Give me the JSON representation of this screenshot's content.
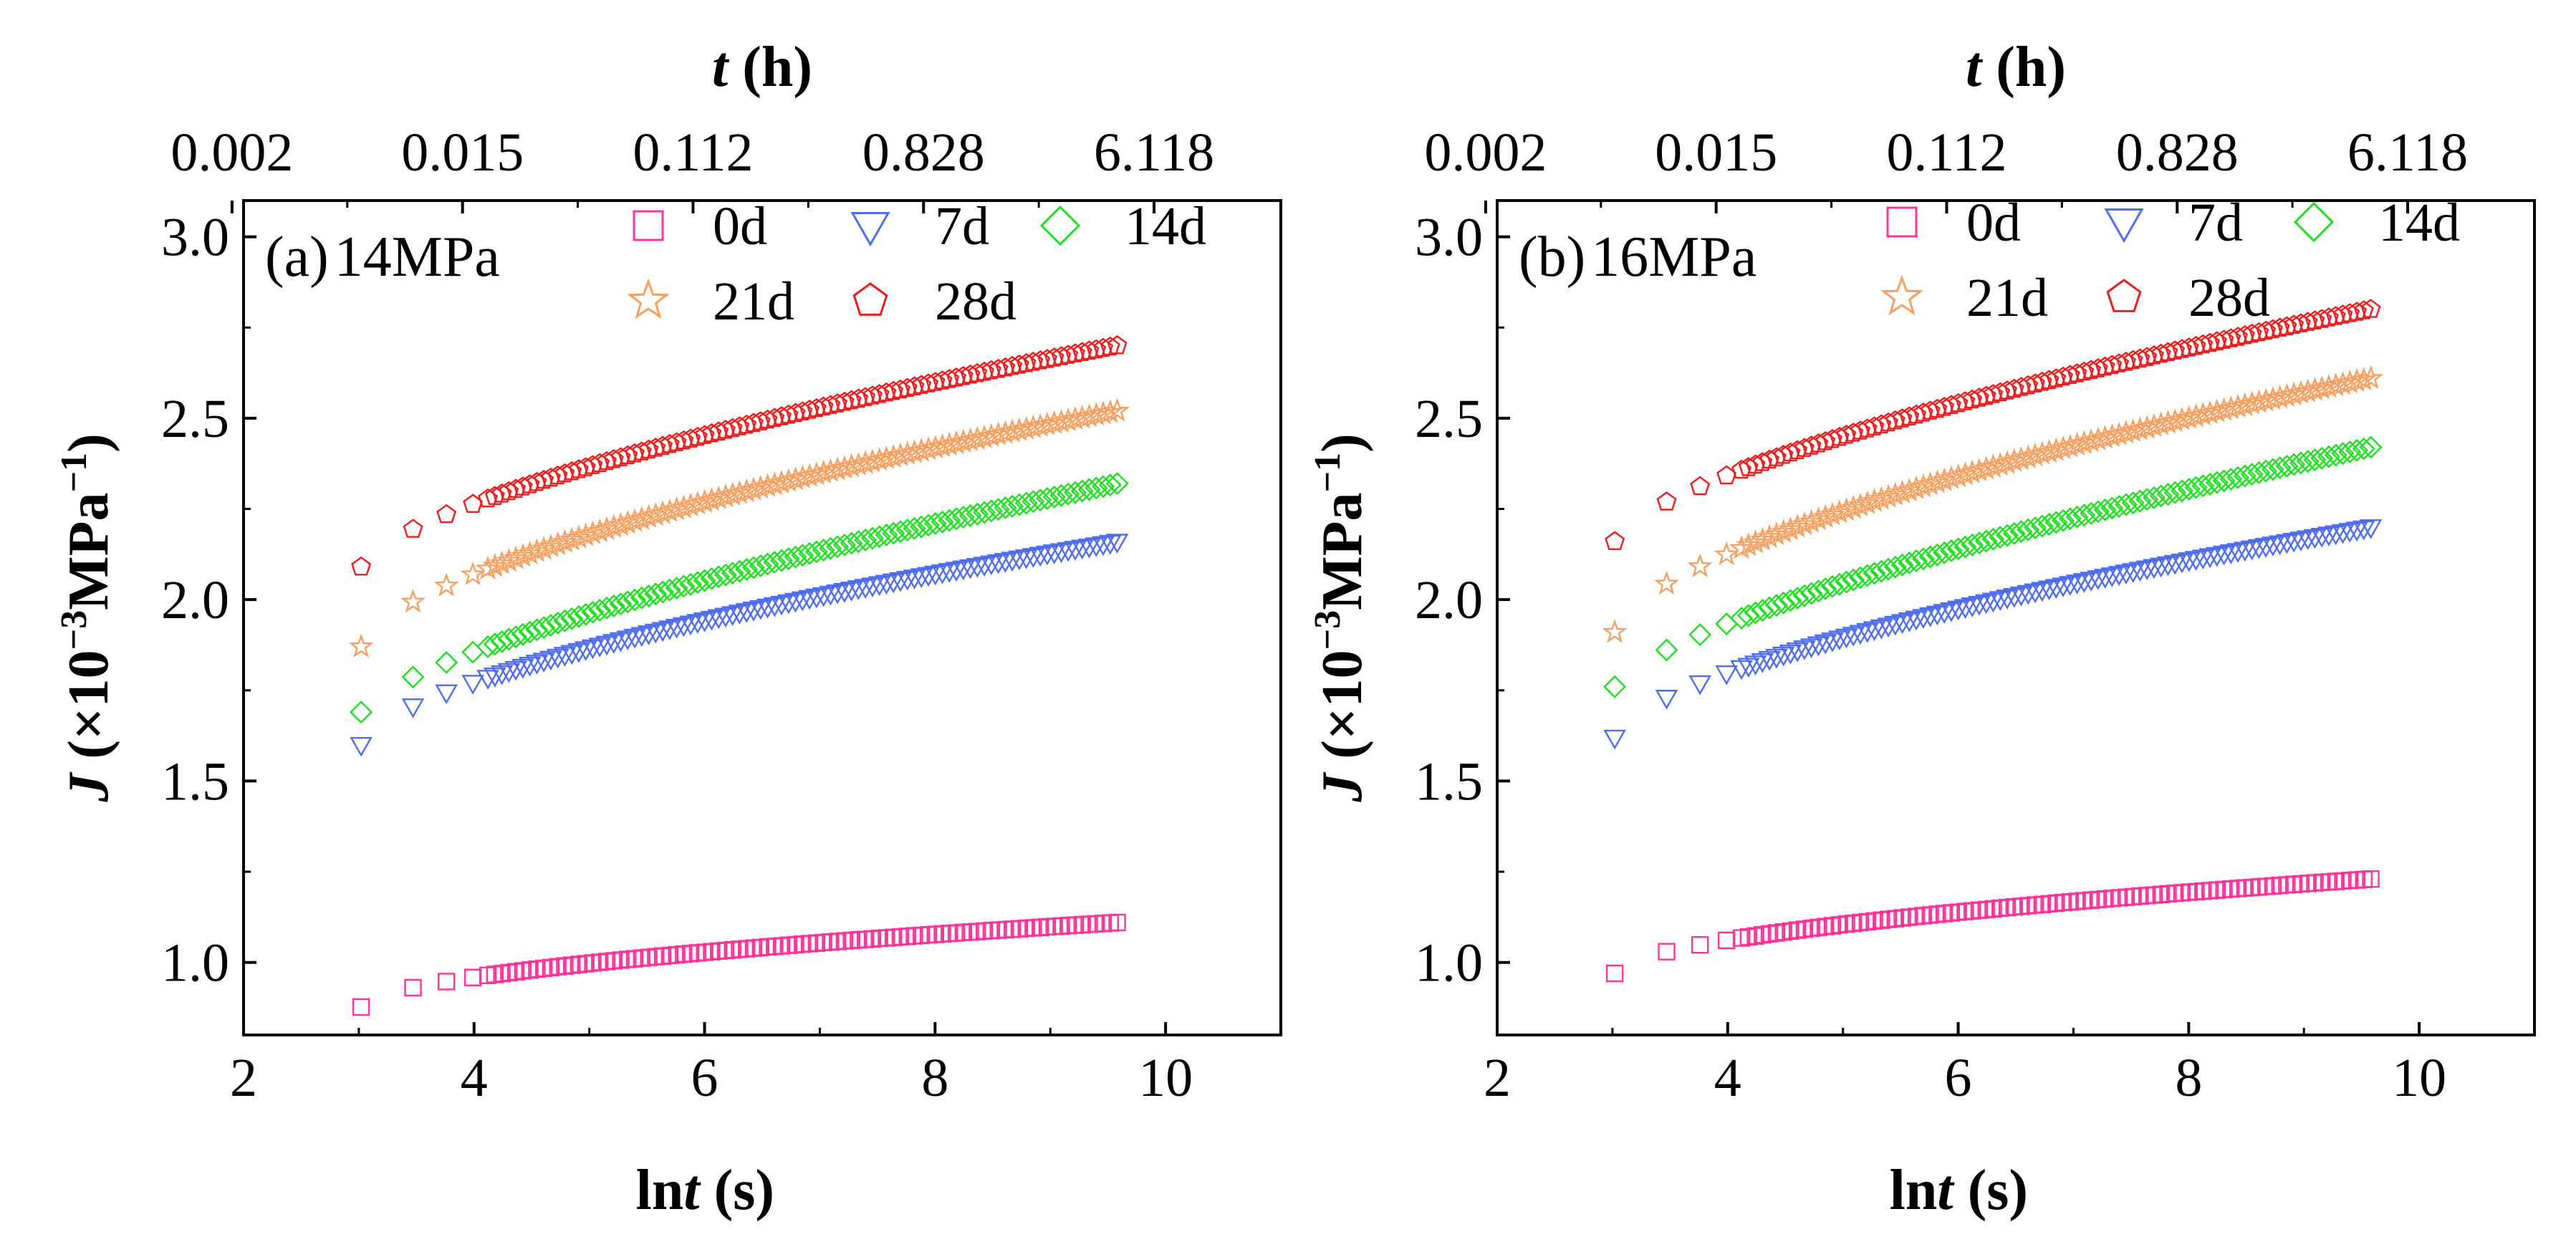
{
  "chart_data": [
    {
      "type": "scatter",
      "panel_label": "(a)",
      "pressure": "14MPa",
      "xlabel_main": "ln",
      "xlabel_var": "t",
      "xlabel_unit": " (s)",
      "top_xlabel_var": "t",
      "top_xlabel_unit": " (h)",
      "ylabel_var": "J",
      "ylabel_unit": " (×10",
      "ylabel_exp1": "−3",
      "ylabel_mid": "MPa",
      "ylabel_exp2": "−1",
      "ylabel_close": ")",
      "xlim": [
        2,
        11
      ],
      "ylim": [
        0.8,
        3.1
      ],
      "xticks": [
        "2",
        "4",
        "6",
        "8",
        "10"
      ],
      "yticks": [
        "1.0",
        "1.5",
        "2.0",
        "2.5",
        "3.0"
      ],
      "top_ticks": [
        {
          "value": 1.9,
          "label": "0.002"
        },
        {
          "value": 3.9,
          "label": "0.015"
        },
        {
          "value": 5.9,
          "label": "0.112"
        },
        {
          "value": 7.9,
          "label": "0.828"
        },
        {
          "value": 9.9,
          "label": "6.118"
        }
      ],
      "series": [
        {
          "name": "0d",
          "marker": "square",
          "color": "#ff3399",
          "j0": 0.877,
          "j1": 1.11,
          "shape": 0.55
        },
        {
          "name": "7d",
          "marker": "triangle-down",
          "color": "#4f6df0",
          "j0": 1.6,
          "j1": 2.16,
          "shape": 0.62
        },
        {
          "name": "14d",
          "marker": "diamond",
          "color": "#1fe01f",
          "j0": 1.69,
          "j1": 2.32,
          "shape": 0.7
        },
        {
          "name": "21d",
          "marker": "star",
          "color": "#f5a060",
          "j0": 1.87,
          "j1": 2.52,
          "shape": 0.62
        },
        {
          "name": "28d",
          "marker": "pentagon",
          "color": "#ee1c1c",
          "j0": 2.09,
          "j1": 2.7,
          "shape": 0.66
        }
      ]
    },
    {
      "type": "scatter",
      "panel_label": "(b)",
      "pressure": "16MPa",
      "xlabel_main": "ln",
      "xlabel_var": "t",
      "xlabel_unit": " (s)",
      "top_xlabel_var": "t",
      "top_xlabel_unit": " (h)",
      "ylabel_var": "J",
      "ylabel_unit": " (×10",
      "ylabel_exp1": "−3",
      "ylabel_mid": "MPa",
      "ylabel_exp2": "−1",
      "ylabel_close": ")",
      "xlim": [
        2,
        11
      ],
      "ylim": [
        0.8,
        3.1
      ],
      "xticks": [
        "2",
        "4",
        "6",
        "8",
        "10"
      ],
      "yticks": [
        "1.0",
        "1.5",
        "2.0",
        "2.5",
        "3.0"
      ],
      "top_ticks": [
        {
          "value": 1.9,
          "label": "0.002"
        },
        {
          "value": 3.9,
          "label": "0.015"
        },
        {
          "value": 5.9,
          "label": "0.112"
        },
        {
          "value": 7.9,
          "label": "0.828"
        },
        {
          "value": 9.9,
          "label": "6.118"
        }
      ],
      "series": [
        {
          "name": "0d",
          "marker": "square",
          "color": "#ff3399",
          "j0": 0.97,
          "j1": 1.23,
          "shape": 0.55
        },
        {
          "name": "7d",
          "marker": "triangle-down",
          "color": "#4f6df0",
          "j0": 1.62,
          "j1": 2.2,
          "shape": 0.62
        },
        {
          "name": "14d",
          "marker": "diamond",
          "color": "#1fe01f",
          "j0": 1.76,
          "j1": 2.42,
          "shape": 0.7
        },
        {
          "name": "21d",
          "marker": "star",
          "color": "#f5a060",
          "j0": 1.91,
          "j1": 2.61,
          "shape": 0.62
        },
        {
          "name": "28d",
          "marker": "pentagon",
          "color": "#ee1c1c",
          "j0": 2.16,
          "j1": 2.8,
          "shape": 0.66
        }
      ]
    }
  ]
}
